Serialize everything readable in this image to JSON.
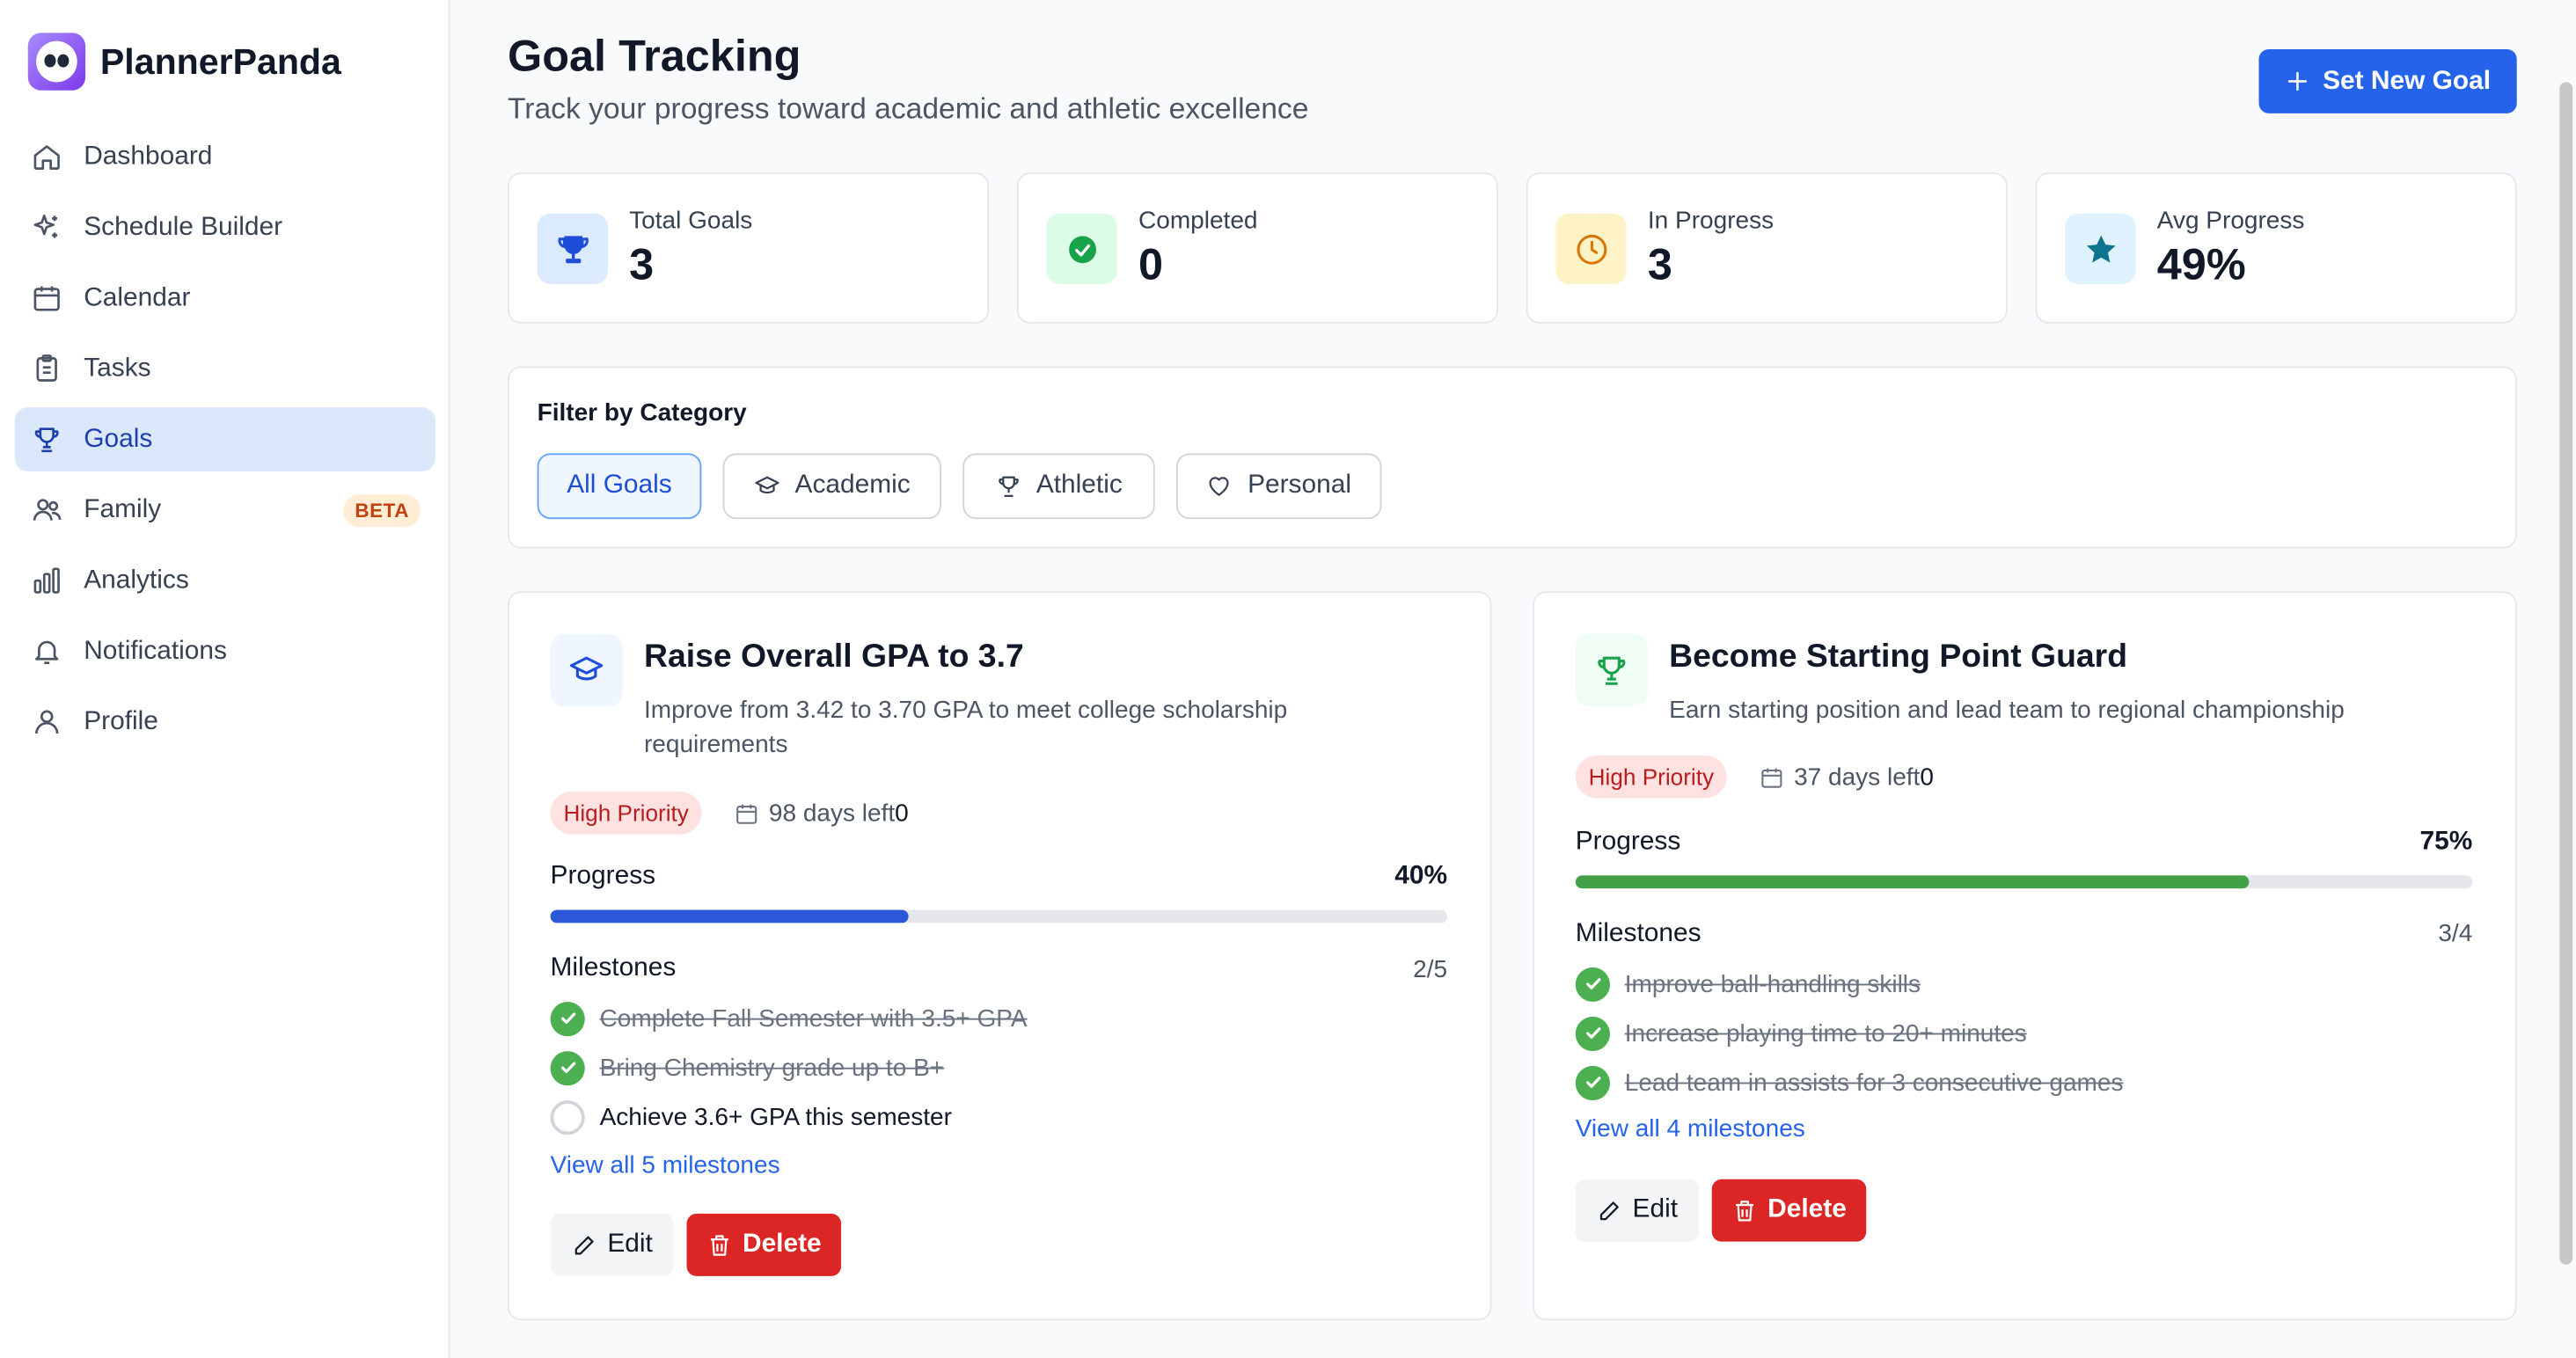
{
  "brand": {
    "name": "PlannerPanda"
  },
  "sidebar": {
    "items": [
      {
        "label": "Dashboard"
      },
      {
        "label": "Schedule Builder"
      },
      {
        "label": "Calendar"
      },
      {
        "label": "Tasks"
      },
      {
        "label": "Goals",
        "active": true
      },
      {
        "label": "Family",
        "badge": "BETA"
      },
      {
        "label": "Analytics"
      },
      {
        "label": "Notifications"
      },
      {
        "label": "Profile"
      }
    ]
  },
  "header": {
    "title": "Goal Tracking",
    "subtitle": "Track your progress toward academic and athletic excellence",
    "new_goal_label": "Set New Goal"
  },
  "stats": [
    {
      "label": "Total Goals",
      "value": "3",
      "icon": "trophy-icon",
      "color": "#1d4ed8"
    },
    {
      "label": "Completed",
      "value": "0",
      "icon": "check-circle-icon",
      "color": "#16a34a"
    },
    {
      "label": "In Progress",
      "value": "3",
      "icon": "clock-icon",
      "color": "#d97706"
    },
    {
      "label": "Avg Progress",
      "value": "49%",
      "icon": "star-icon",
      "color": "#0e7490"
    }
  ],
  "filter": {
    "title": "Filter by Category",
    "options": [
      {
        "label": "All Goals",
        "active": true
      },
      {
        "label": "Academic",
        "icon": "graduation-cap-icon"
      },
      {
        "label": "Athletic",
        "icon": "trophy-icon"
      },
      {
        "label": "Personal",
        "icon": "heart-icon"
      }
    ]
  },
  "goals": [
    {
      "title": "Raise Overall GPA to 3.7",
      "description": "Improve from 3.42 to 3.70 GPA to meet college scholarship requirements",
      "icon": "graduation-cap-icon",
      "priority": "High Priority",
      "days_left": "98 days left",
      "days_suffix": "0",
      "progress_label": "Progress",
      "progress_text": "40%",
      "progress": 0.4,
      "progress_color": "#2b57d9",
      "milestones_label": "Milestones",
      "milestones_count": "2/5",
      "milestones": [
        {
          "text": "Complete Fall Semester with 3.5+ GPA",
          "done": true
        },
        {
          "text": "Bring Chemistry grade up to B+",
          "done": true
        },
        {
          "text": "Achieve 3.6+ GPA this semester",
          "done": false
        }
      ],
      "view_all": "View all 5 milestones",
      "edit_label": "Edit",
      "delete_label": "Delete"
    },
    {
      "title": "Become Starting Point Guard",
      "description": "Earn starting position and lead team to regional championship",
      "icon": "trophy-icon",
      "priority": "High Priority",
      "days_left": "37 days left",
      "days_suffix": "0",
      "progress_label": "Progress",
      "progress_text": "75%",
      "progress": 0.75,
      "progress_color": "#43a047",
      "milestones_label": "Milestones",
      "milestones_count": "3/4",
      "milestones": [
        {
          "text": "Improve ball-handling skills",
          "done": true
        },
        {
          "text": "Increase playing time to 20+ minutes",
          "done": true
        },
        {
          "text": "Lead team in assists for 3 consecutive games",
          "done": true
        }
      ],
      "view_all": "View all 4 milestones",
      "edit_label": "Edit",
      "delete_label": "Delete"
    }
  ]
}
